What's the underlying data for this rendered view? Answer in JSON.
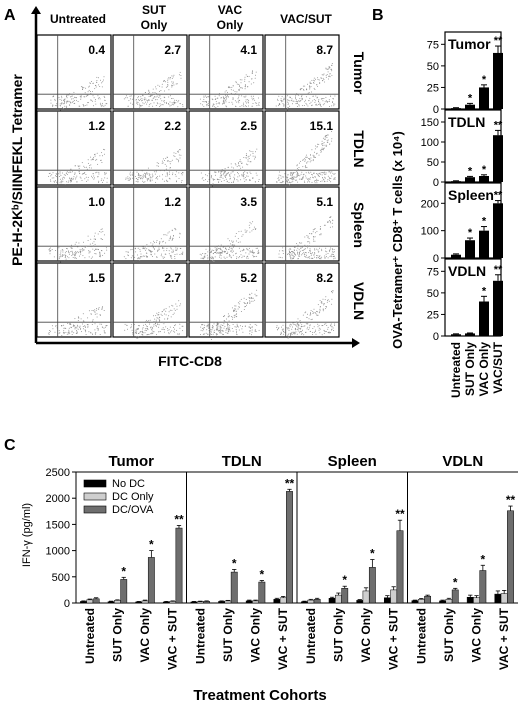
{
  "panel_labels": {
    "a": "A",
    "b": "B",
    "c": "C"
  },
  "panel_a": {
    "columns": [
      "Untreated",
      "SUT\nOnly",
      "VAC\nOnly",
      "VAC/SUT"
    ],
    "rows": [
      "Tumor",
      "TDLN",
      "Spleen",
      "VDLN"
    ],
    "values": [
      [
        "0.4",
        "2.7",
        "4.1",
        "8.7"
      ],
      [
        "1.2",
        "2.2",
        "2.5",
        "15.1"
      ],
      [
        "1.0",
        "1.2",
        "3.5",
        "5.1"
      ],
      [
        "1.5",
        "2.7",
        "5.2",
        "8.2"
      ]
    ],
    "xlabel": "FITC-CD8",
    "ylabel": "PE-H-2Kᵇ/SIINFEKL Tetramer",
    "point_density": [
      [
        0.15,
        0.2,
        0.25,
        0.35
      ],
      [
        0.15,
        0.15,
        0.2,
        0.55
      ],
      [
        0.1,
        0.15,
        0.3,
        0.35
      ],
      [
        0.12,
        0.2,
        0.45,
        0.35
      ]
    ],
    "colors": {
      "frame": "#000000",
      "dots": "#8a8a8a",
      "gate": "#444444"
    }
  },
  "chart_data": [
    {
      "type": "bar",
      "panel": "B",
      "ylabel": "OVA-Tetramer⁺ CD8⁺ T cells (x 10⁴)",
      "categories": [
        "Untreated",
        "SUT Only",
        "VAC Only",
        "VAC/SUT"
      ],
      "subplots": [
        {
          "title": "Tumor",
          "ticks": [
            "0",
            "25",
            "50",
            "75"
          ],
          "ylim": [
            0,
            80
          ],
          "values": [
            1,
            5,
            25,
            65
          ],
          "errors": [
            0.5,
            1.5,
            3,
            8
          ],
          "marks": [
            "",
            "*",
            "*",
            "**"
          ]
        },
        {
          "title": "TDLN",
          "ticks": [
            "0",
            "50",
            "100",
            "150"
          ],
          "ylim": [
            0,
            160
          ],
          "values": [
            2,
            12,
            15,
            117
          ],
          "errors": [
            1,
            2,
            3,
            12
          ],
          "marks": [
            "",
            "*",
            "*",
            "**"
          ]
        },
        {
          "title": "Spleen",
          "ticks": [
            "0",
            "100",
            "200"
          ],
          "ylim": [
            0,
            245
          ],
          "values": [
            12,
            65,
            100,
            200
          ],
          "errors": [
            3,
            8,
            15,
            10
          ],
          "marks": [
            "",
            "*",
            "*",
            "**"
          ]
        },
        {
          "title": "VDLN",
          "ticks": [
            "0",
            "25",
            "50",
            "75"
          ],
          "ylim": [
            0,
            80
          ],
          "values": [
            2,
            3,
            40,
            64
          ],
          "errors": [
            0.5,
            0.5,
            6,
            7
          ],
          "marks": [
            "",
            "",
            "*",
            "**"
          ]
        }
      ],
      "colors": {
        "bar": "#000000"
      }
    },
    {
      "type": "bar",
      "panel": "C",
      "ylabel": "IFN-γ (pg/ml)",
      "xlabel": "Treatment Cohorts",
      "ylim": [
        0,
        2500
      ],
      "yticks": [
        "0",
        "500",
        "1000",
        "1500",
        "2000",
        "2500"
      ],
      "groups": [
        "Tumor",
        "TDLN",
        "Spleen",
        "VDLN"
      ],
      "categories": [
        "Untreated",
        "SUT Only",
        "VAC Only",
        "VAC + SUT"
      ],
      "series": [
        {
          "name": "No DC",
          "color": "#000000",
          "values": [
            [
              30,
              25,
              20,
              20
            ],
            [
              20,
              30,
              40,
              70
            ],
            [
              25,
              90,
              50,
              100
            ],
            [
              45,
              40,
              110,
              170
            ]
          ],
          "errors": [
            [
              10,
              10,
              10,
              10
            ],
            [
              10,
              10,
              15,
              20
            ],
            [
              10,
              20,
              15,
              40
            ],
            [
              10,
              15,
              40,
              60
            ]
          ]
        },
        {
          "name": "DC Only",
          "color": "#cfcfcf",
          "values": [
            [
              60,
              50,
              40,
              30
            ],
            [
              25,
              40,
              40,
              100
            ],
            [
              55,
              150,
              230,
              250
            ],
            [
              70,
              70,
              100,
              180
            ]
          ],
          "errors": [
            [
              15,
              10,
              15,
              10
            ],
            [
              10,
              10,
              15,
              25
            ],
            [
              15,
              40,
              60,
              60
            ],
            [
              15,
              20,
              40,
              60
            ]
          ]
        },
        {
          "name": "DC/OVA",
          "color": "#6e6e6e",
          "values": [
            [
              80,
              450,
              870,
              1430
            ],
            [
              30,
              590,
              400,
              2130
            ],
            [
              70,
              280,
              680,
              1380
            ],
            [
              130,
              250,
              620,
              1760
            ]
          ],
          "errors": [
            [
              20,
              40,
              130,
              50
            ],
            [
              10,
              50,
              30,
              40
            ],
            [
              20,
              40,
              150,
              200
            ],
            [
              20,
              30,
              100,
              90
            ]
          ]
        }
      ],
      "marks": [
        [
          "",
          "*",
          "*",
          "**"
        ],
        [
          "",
          "*",
          "*",
          "**"
        ],
        [
          "",
          "*",
          "*",
          "**"
        ],
        [
          "",
          "*",
          "*",
          "**"
        ]
      ]
    }
  ]
}
